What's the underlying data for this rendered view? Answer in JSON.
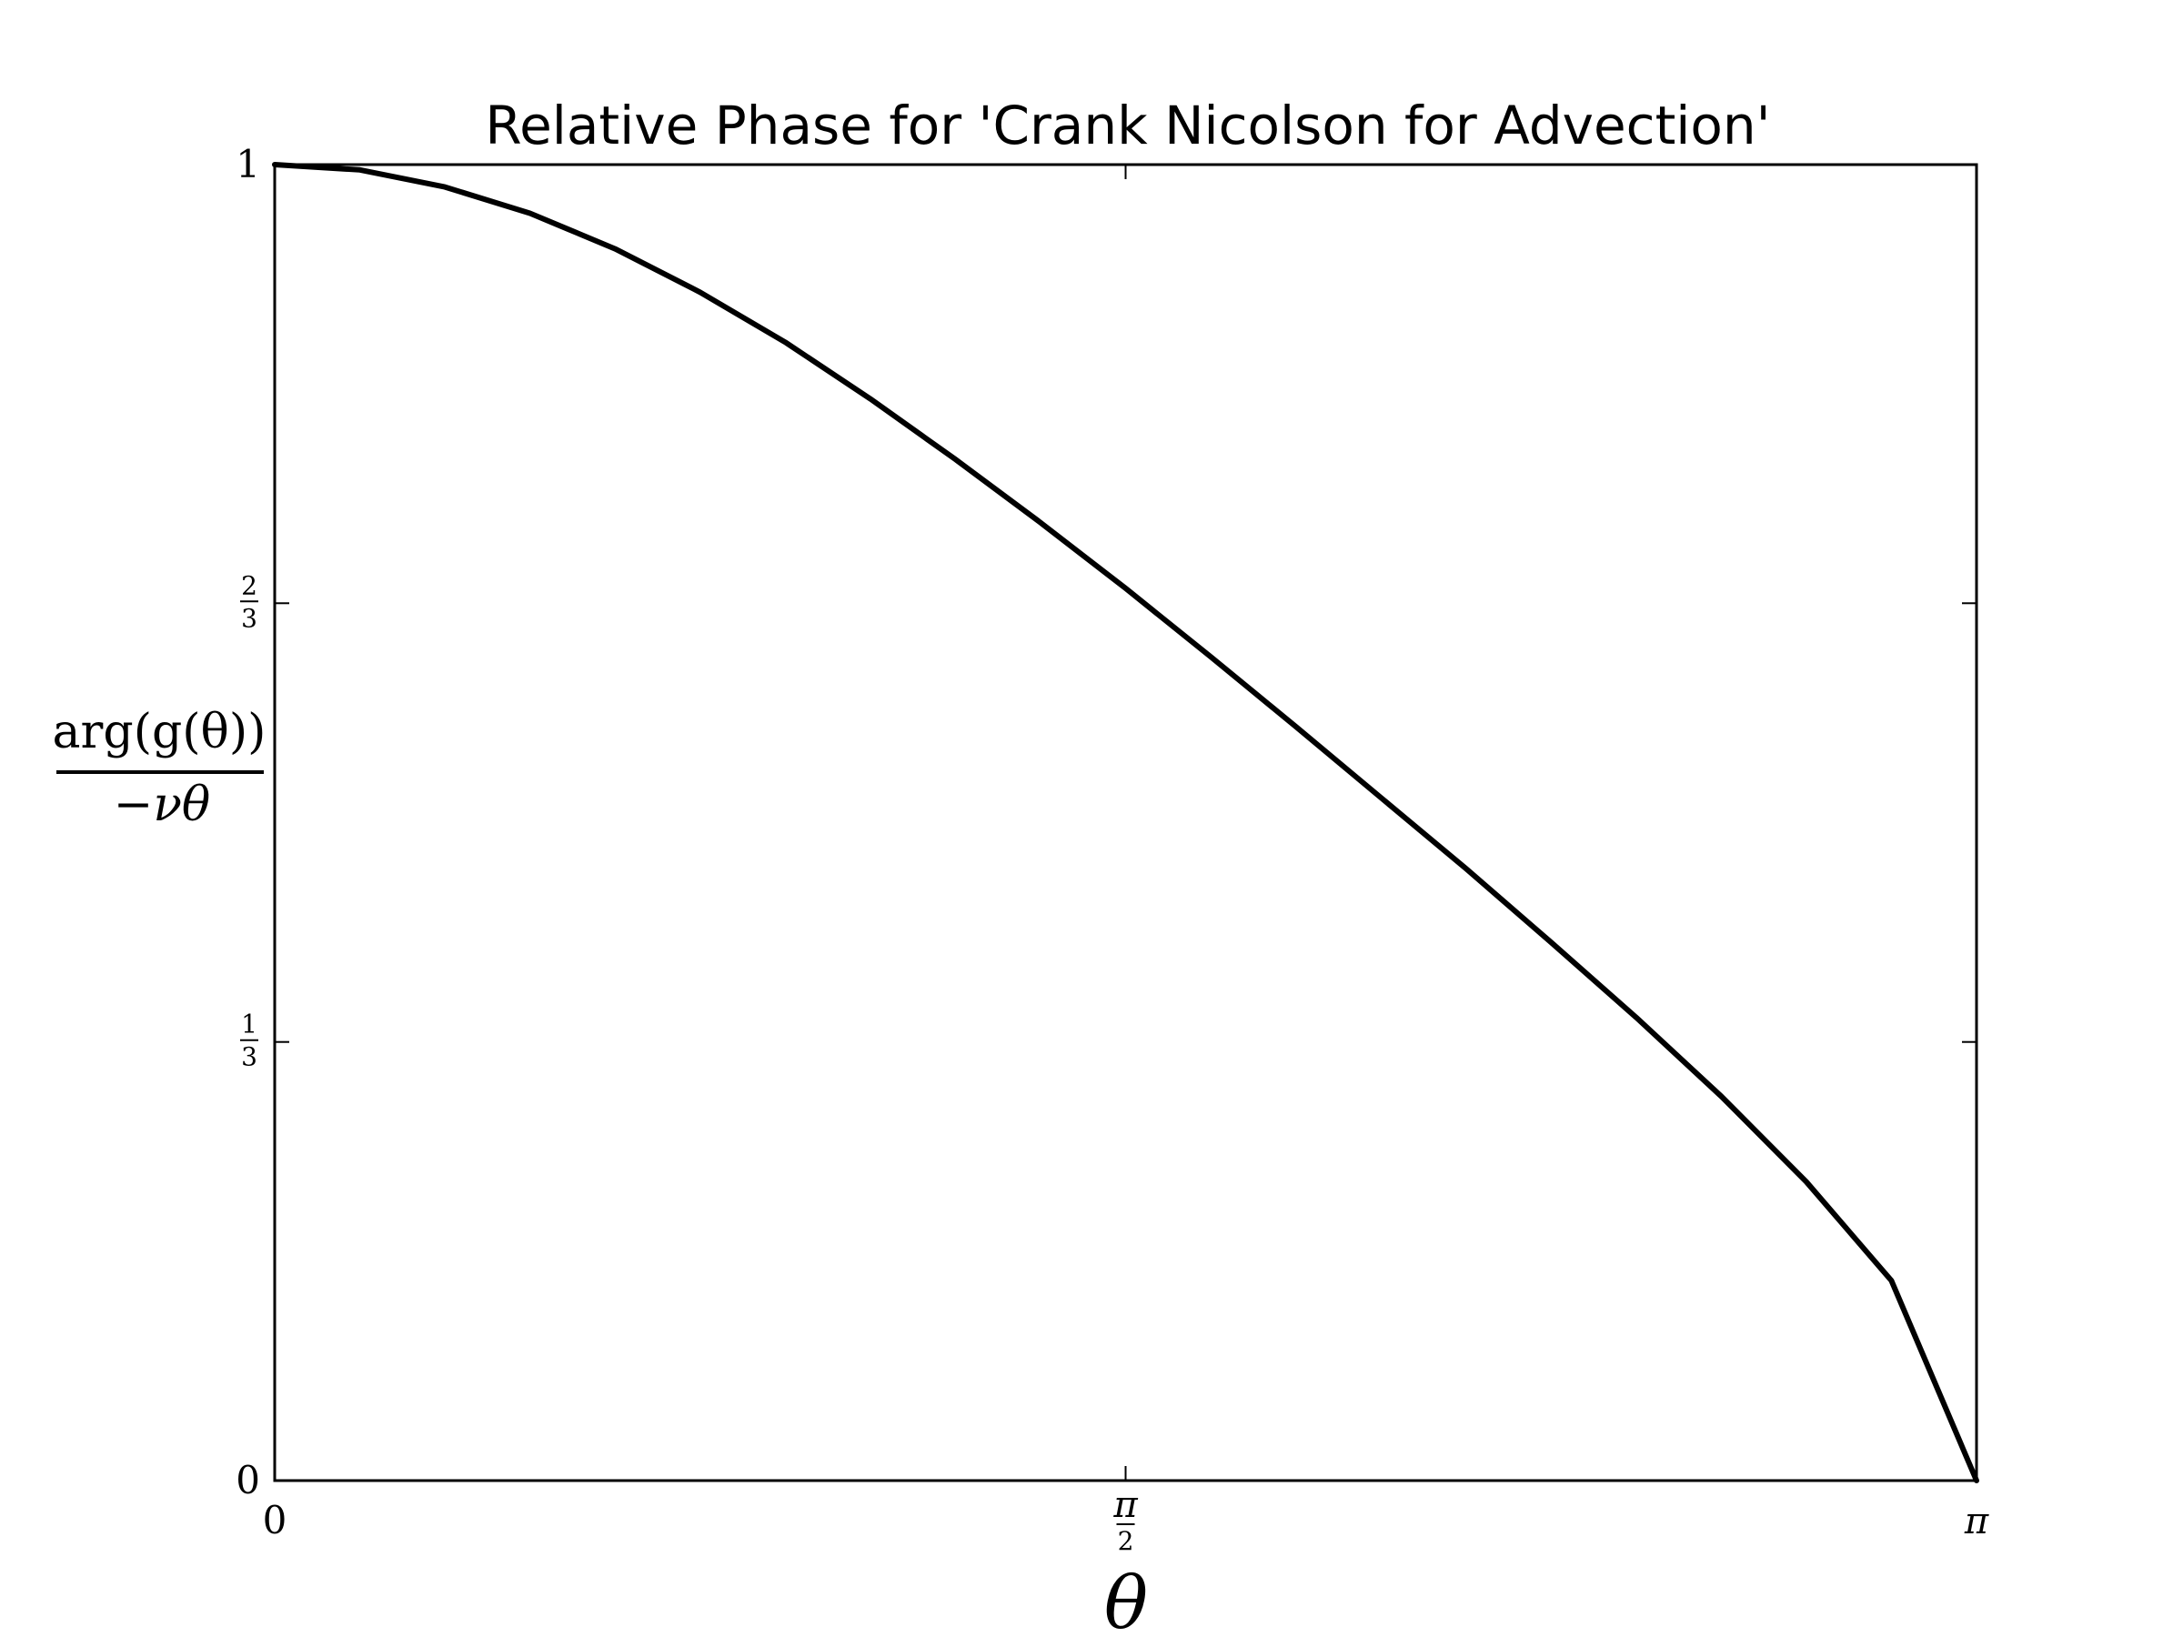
{
  "chart_data": {
    "type": "line",
    "title": "Relative Phase for 'Crank Nicolson for Advection'",
    "xlabel": "θ",
    "ylabel": {
      "numerator": "arg(g(θ))",
      "denominator": "−νθ"
    },
    "xlim": [
      0,
      3.14159
    ],
    "ylim": [
      0,
      1
    ],
    "x_ticks": [
      {
        "value": 0,
        "label": "0"
      },
      {
        "value": 1.5708,
        "label_num": "π",
        "label_den": "2"
      },
      {
        "value": 3.14159,
        "label": "π"
      }
    ],
    "y_ticks": [
      {
        "value": 0,
        "label": "0"
      },
      {
        "value": 0.3333,
        "label_num": "1",
        "label_den": "3"
      },
      {
        "value": 0.6667,
        "label_num": "2",
        "label_den": "3"
      },
      {
        "value": 1,
        "label": "1"
      }
    ],
    "grid": false,
    "legend": "none",
    "series": [
      {
        "color": "#000000",
        "x": [
          0,
          0.1571,
          0.3142,
          0.4712,
          0.6283,
          0.7854,
          0.9425,
          1.0996,
          1.2566,
          1.4137,
          1.5708,
          1.7279,
          1.885,
          2.042,
          2.1991,
          2.3562,
          2.5133,
          2.6704,
          2.8274,
          2.9845,
          3.1416
        ],
        "y": [
          1.0,
          0.996,
          0.983,
          0.963,
          0.936,
          0.903,
          0.865,
          0.822,
          0.776,
          0.728,
          0.678,
          0.626,
          0.573,
          0.519,
          0.465,
          0.409,
          0.352,
          0.292,
          0.227,
          0.152,
          0.0
        ]
      }
    ]
  }
}
